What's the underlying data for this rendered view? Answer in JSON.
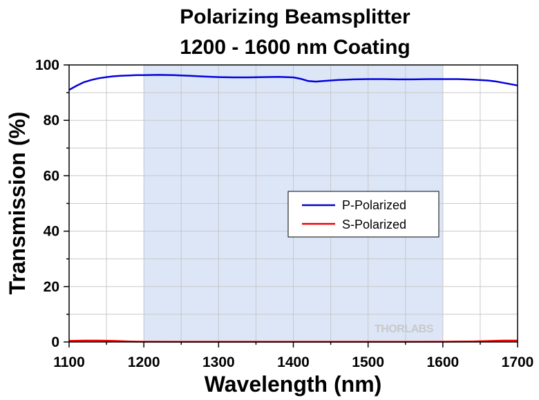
{
  "chart_data": {
    "type": "line",
    "title_line1": "Polarizing Beamsplitter",
    "title_line2": "1200 - 1600 nm Coating",
    "xlabel": "Wavelength (nm)",
    "ylabel": "Transmission (%)",
    "xlim": [
      1100,
      1700
    ],
    "ylim": [
      0,
      100
    ],
    "xticks": [
      1100,
      1200,
      1300,
      1400,
      1500,
      1600,
      1700
    ],
    "yticks": [
      0,
      20,
      40,
      60,
      80,
      100
    ],
    "grid": true,
    "shaded_region": [
      1200,
      1600
    ],
    "shaded_color": "#dce6f7",
    "legend_position": "center-right",
    "watermark": "THORLABS",
    "series": [
      {
        "name": "P-Polarized",
        "color": "#0000dd",
        "x": [
          1100,
          1110,
          1120,
          1130,
          1140,
          1150,
          1160,
          1170,
          1180,
          1190,
          1200,
          1220,
          1240,
          1260,
          1280,
          1300,
          1320,
          1340,
          1360,
          1380,
          1400,
          1410,
          1420,
          1430,
          1440,
          1460,
          1480,
          1500,
          1520,
          1540,
          1560,
          1580,
          1600,
          1620,
          1640,
          1660,
          1670,
          1680,
          1690,
          1700
        ],
        "y": [
          91,
          92.5,
          93.8,
          94.6,
          95.2,
          95.6,
          95.9,
          96.1,
          96.2,
          96.3,
          96.3,
          96.4,
          96.3,
          96.1,
          95.8,
          95.6,
          95.5,
          95.5,
          95.6,
          95.7,
          95.5,
          95.0,
          94.2,
          94.0,
          94.2,
          94.6,
          94.8,
          94.9,
          94.9,
          94.8,
          94.8,
          94.9,
          94.9,
          94.9,
          94.7,
          94.4,
          94.1,
          93.6,
          93.1,
          92.6
        ]
      },
      {
        "name": "S-Polarized",
        "color": "#ee0000",
        "x": [
          1100,
          1120,
          1140,
          1160,
          1180,
          1200,
          1250,
          1300,
          1350,
          1400,
          1450,
          1500,
          1550,
          1600,
          1620,
          1640,
          1660,
          1680,
          1700
        ],
        "y": [
          0.4,
          0.5,
          0.5,
          0.4,
          0.2,
          0.1,
          0.05,
          0.05,
          0.05,
          0.05,
          0.05,
          0.05,
          0.05,
          0.1,
          0.15,
          0.2,
          0.35,
          0.5,
          0.5
        ]
      }
    ]
  }
}
